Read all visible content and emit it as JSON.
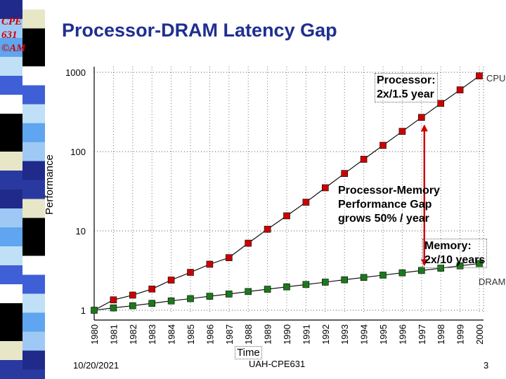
{
  "slide": {
    "logo_lines": [
      "CPE",
      "631",
      "©AM"
    ],
    "title": "Processor-DRAM Latency Gap",
    "footer_date": "10/20/2021",
    "footer_course": "UAH-CPE631",
    "page_number": "3"
  },
  "annotations": {
    "processor": [
      "Processor:",
      "2x/1.5 year"
    ],
    "gap": [
      "Processor-Memory",
      "Performance Gap",
      "grows 50% / year"
    ],
    "memory": [
      "Memory:",
      "2x/10 years"
    ]
  },
  "colors": {
    "cpu_marker": "#cc0000",
    "dram_marker": "#1a7a1a",
    "arrow": "#cc0000",
    "title": "#1f2f8f",
    "stripe": [
      "#1f2a8a",
      "#000000",
      "#3f5fd6",
      "#9ec9f5",
      "#e7e7c8",
      "#ffffff",
      "#5fa5ef",
      "#2a39a0",
      "#000000",
      "#bfe0f7"
    ]
  },
  "chart_data": {
    "type": "line",
    "title": "Processor-DRAM Latency Gap",
    "xlabel": "Time",
    "ylabel": "Performance",
    "yscale": "log",
    "ylim": [
      1,
      1000
    ],
    "y_ticks": [
      "1",
      "10",
      "100",
      "1000"
    ],
    "categories": [
      "1980",
      "1981",
      "1982",
      "1983",
      "1984",
      "1985",
      "1986",
      "1987",
      "1988",
      "1989",
      "1990",
      "1991",
      "1992",
      "1993",
      "1994",
      "1995",
      "1996",
      "1997",
      "1998",
      "1999",
      "2000"
    ],
    "series": [
      {
        "name": "CPU",
        "values": [
          1.0,
          1.35,
          1.55,
          1.85,
          2.4,
          3.0,
          3.8,
          4.6,
          7.0,
          10.5,
          15.5,
          23,
          35,
          53,
          80,
          120,
          180,
          270,
          405,
          600,
          900
        ]
      },
      {
        "name": "DRAM",
        "values": [
          1.0,
          1.07,
          1.14,
          1.22,
          1.31,
          1.4,
          1.5,
          1.6,
          1.72,
          1.84,
          1.97,
          2.11,
          2.26,
          2.42,
          2.59,
          2.77,
          2.96,
          3.17,
          3.39,
          3.63,
          3.88
        ]
      }
    ],
    "grid": true
  }
}
